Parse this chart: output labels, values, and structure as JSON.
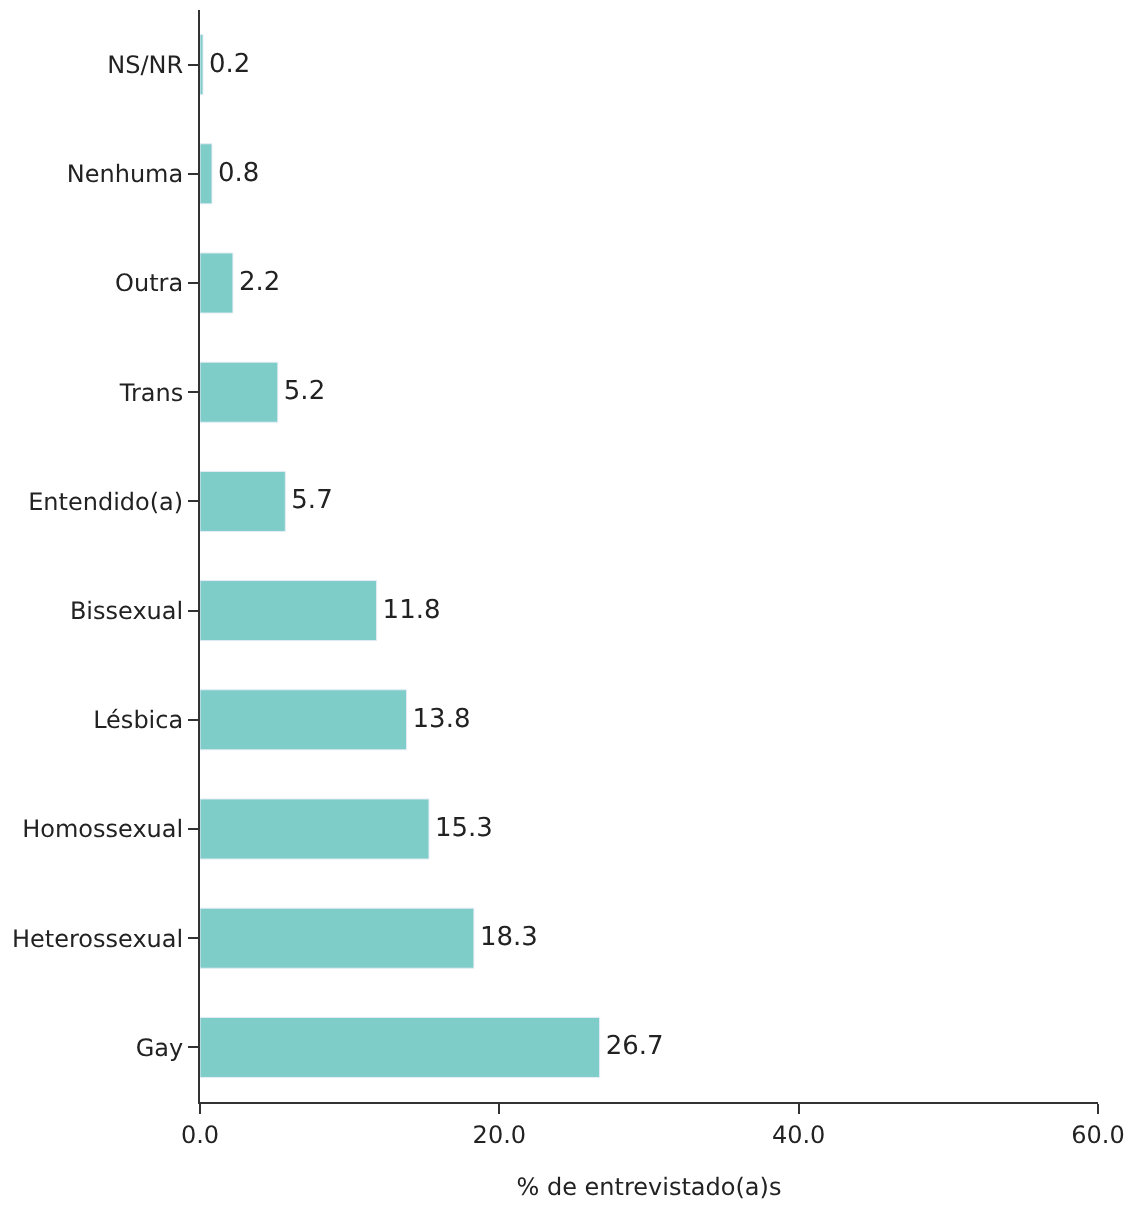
{
  "chart_data": {
    "type": "bar",
    "orientation": "horizontal",
    "xlabel": "% de entrevistado(a)s",
    "categories": [
      "NS/NR",
      "Nenhuma",
      "Outra",
      "Trans",
      "Entendido(a)",
      "Bissexual",
      "Lésbica",
      "Homossexual",
      "Heterossexual",
      "Gay"
    ],
    "values": [
      0.2,
      0.8,
      2.2,
      5.2,
      5.7,
      11.8,
      13.8,
      15.3,
      18.3,
      26.7
    ],
    "color": "#7ecdc8",
    "xlim": [
      0,
      60
    ],
    "xticks": [
      {
        "value": 0,
        "label": "0.0"
      },
      {
        "value": 20,
        "label": "20.0"
      },
      {
        "value": 40,
        "label": "40.0"
      },
      {
        "value": 60,
        "label": "60.0"
      }
    ],
    "data_labels": true
  }
}
